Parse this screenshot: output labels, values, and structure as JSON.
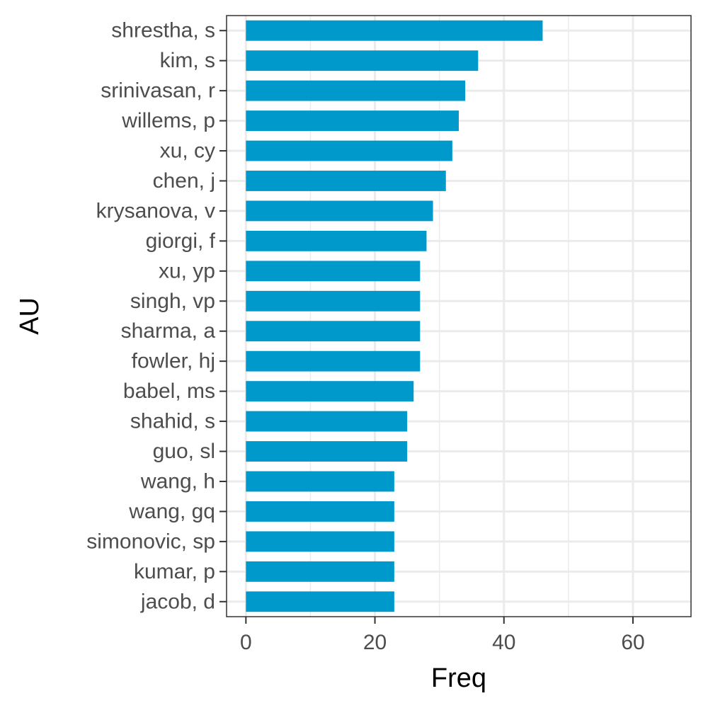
{
  "chart_data": {
    "type": "bar",
    "orientation": "horizontal",
    "categories": [
      "shrestha, s",
      "kim, s",
      "srinivasan, r",
      "willems, p",
      "xu, cy",
      "chen, j",
      "krysanova, v",
      "giorgi, f",
      "xu, yp",
      "singh, vp",
      "sharma, a",
      "fowler, hj",
      "babel, ms",
      "shahid, s",
      "guo, sl",
      "wang, h",
      "wang, gq",
      "simonovic, sp",
      "kumar, p",
      "jacob, d"
    ],
    "values": [
      46,
      36,
      34,
      33,
      32,
      31,
      29,
      28,
      27,
      27,
      27,
      27,
      26,
      25,
      25,
      23,
      23,
      23,
      23,
      23
    ],
    "xlabel": "Freq",
    "ylabel": "AU",
    "xlim": [
      -3,
      69
    ],
    "x_ticks": [
      0,
      20,
      40,
      60
    ],
    "x_minor_ticks": [
      10,
      30,
      50
    ],
    "grid": true,
    "bar_color": "#0099CC",
    "grid_color": "#EBEBEB",
    "panel_border_color": "#333333"
  }
}
